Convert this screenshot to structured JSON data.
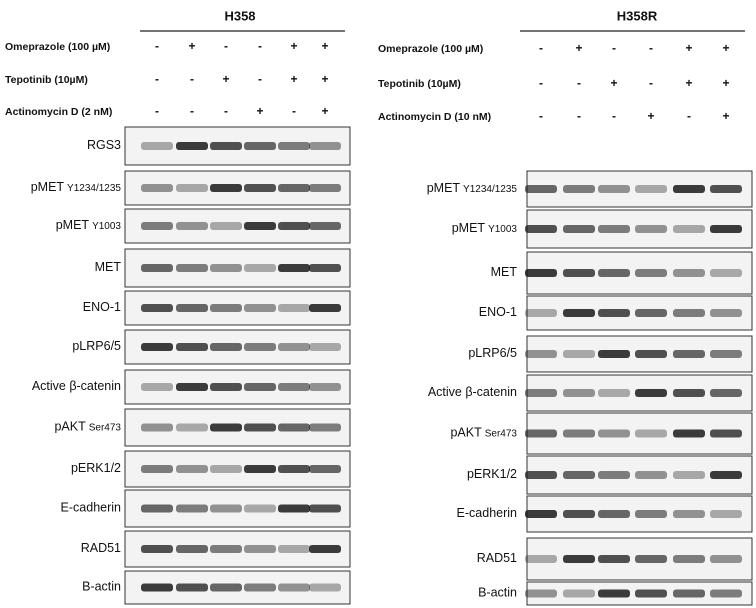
{
  "panels": [
    {
      "title": "H358",
      "treatments": [
        {
          "label": "Omeprazole (100 µM)",
          "signs": [
            "-",
            "+",
            "-",
            "-",
            "+",
            "+"
          ]
        },
        {
          "label": "Tepotinib (10µM)",
          "signs": [
            "-",
            "-",
            "+",
            "-",
            "+",
            "+"
          ]
        },
        {
          "label": "Actinomycin D (2 nM)",
          "signs": [
            "-",
            "-",
            "-",
            "+",
            "-",
            "+"
          ]
        }
      ],
      "blots": [
        {
          "name": "RGS3"
        },
        {
          "name": "pMET",
          "site": "Y1234/1235"
        },
        {
          "name": "pMET",
          "site": "Y1003"
        },
        {
          "name": "MET"
        },
        {
          "name": "ENO-1"
        },
        {
          "name": "pLRP6/5"
        },
        {
          "name": "Active β-catenin"
        },
        {
          "name": "pAKT",
          "site": "Ser473"
        },
        {
          "name": "pERK1/2"
        },
        {
          "name": "E-cadherin"
        },
        {
          "name": "RAD51"
        },
        {
          "name": "B-actin"
        }
      ]
    },
    {
      "title": "H358R",
      "treatments": [
        {
          "label": "Omeprazole (100 µM)",
          "signs": [
            "-",
            "+",
            "-",
            "-",
            "+",
            "+"
          ]
        },
        {
          "label": "Tepotinib (10µM)",
          "signs": [
            "-",
            "-",
            "+",
            "-",
            "+",
            "+"
          ]
        },
        {
          "label": "Actinomycin D (10 nM)",
          "signs": [
            "-",
            "-",
            "-",
            "+",
            "-",
            "+"
          ]
        }
      ],
      "blots": [
        {
          "name": "pMET",
          "site": "Y1234/1235"
        },
        {
          "name": "pMET",
          "site": "Y1003"
        },
        {
          "name": "MET"
        },
        {
          "name": "ENO-1"
        },
        {
          "name": "pLRP6/5"
        },
        {
          "name": "Active β-catenin"
        },
        {
          "name": "pAKT",
          "site": "Ser473"
        },
        {
          "name": "pERK1/2"
        },
        {
          "name": "E-cadherin"
        },
        {
          "name": "RAD51"
        },
        {
          "name": "B-actin"
        }
      ]
    }
  ]
}
